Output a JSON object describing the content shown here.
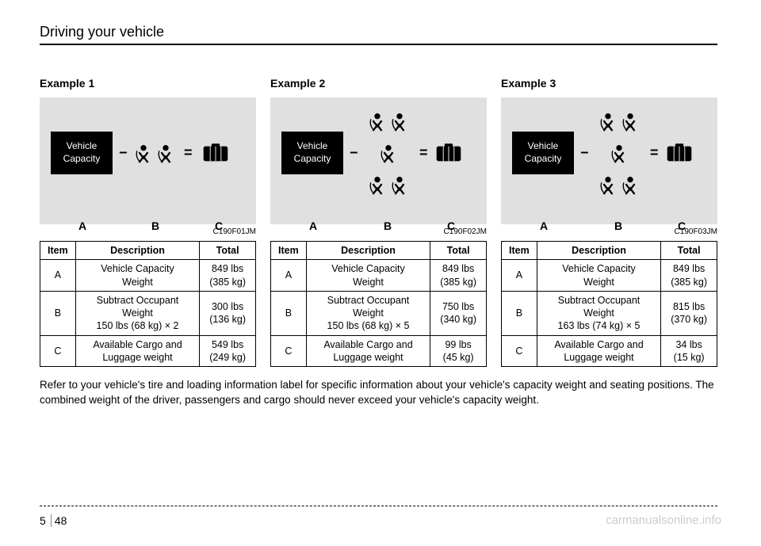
{
  "section_title": "Driving your vehicle",
  "footer_text": "Refer to your vehicle's tire and loading information label for specific information about your vehicle's capacity weight and seating positions. The combined weight of the driver, passengers and cargo should never exceed your vehicle's capacity weight.",
  "page_section": "5",
  "page_number": "48",
  "watermark": "carmanualsonline.info",
  "vehicle_capacity_line1": "Vehicle",
  "vehicle_capacity_line2": "Capacity",
  "diagram_labels": {
    "a": "A",
    "b": "B",
    "c": "C"
  },
  "table_headers": {
    "item": "Item",
    "description": "Description",
    "total": "Total"
  },
  "examples": [
    {
      "title": "Example 1",
      "fig_code": "C190F01JM",
      "rows": [
        {
          "item": "A",
          "description": "Vehicle Capacity\nWeight",
          "total": "849 lbs\n(385 kg)"
        },
        {
          "item": "B",
          "description": "Subtract Occupant\nWeight\n150 lbs (68 kg) × 2",
          "total": "300 lbs\n(136 kg)"
        },
        {
          "item": "C",
          "description": "Available Cargo and\nLuggage weight",
          "total": "549 lbs\n(249 kg)"
        }
      ]
    },
    {
      "title": "Example 2",
      "fig_code": "C190F02JM",
      "rows": [
        {
          "item": "A",
          "description": "Vehicle Capacity\nWeight",
          "total": "849 lbs\n(385 kg)"
        },
        {
          "item": "B",
          "description": "Subtract Occupant\nWeight\n150 lbs (68 kg) × 5",
          "total": "750 lbs\n(340 kg)"
        },
        {
          "item": "C",
          "description": "Available Cargo and\nLuggage weight",
          "total": "99 lbs\n(45 kg)"
        }
      ]
    },
    {
      "title": "Example 3",
      "fig_code": "C190F03JM",
      "rows": [
        {
          "item": "A",
          "description": "Vehicle Capacity\nWeight",
          "total": "849 lbs\n(385 kg)"
        },
        {
          "item": "B",
          "description": "Subtract Occupant\nWeight\n163 lbs (74 kg) × 5",
          "total": "815 lbs\n(370 kg)"
        },
        {
          "item": "C",
          "description": "Available Cargo and\nLuggage weight",
          "total": "34 lbs\n(15 kg)"
        }
      ]
    }
  ]
}
